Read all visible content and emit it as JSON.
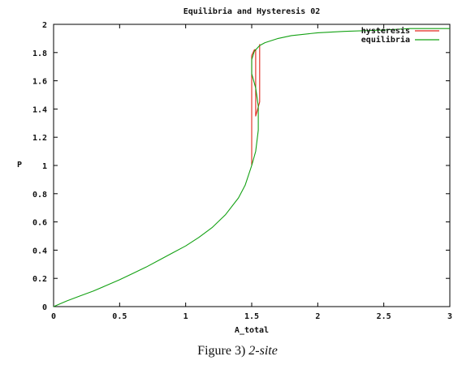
{
  "chart_data": {
    "type": "line",
    "title": "Equilibria and Hysteresis 02",
    "xlabel": "A_total",
    "ylabel": "P",
    "xlim": [
      0,
      3
    ],
    "ylim": [
      0,
      2
    ],
    "x_ticks": [
      "0",
      "0.5",
      "1",
      "1.5",
      "2",
      "2.5",
      "3"
    ],
    "y_ticks": [
      "0",
      "0.2",
      "0.4",
      "0.6",
      "0.8",
      "1",
      "1.2",
      "1.4",
      "1.6",
      "1.8",
      "2"
    ],
    "grid": false,
    "legend_position": "top-right",
    "series": [
      {
        "name": "hysteresis",
        "color": "#e0261a",
        "points": [
          [
            1.5,
            1.0
          ],
          [
            1.5,
            1.78
          ],
          [
            1.52,
            1.82
          ],
          [
            1.53,
            1.82
          ],
          [
            1.53,
            1.35
          ],
          [
            1.56,
            1.45
          ],
          [
            1.56,
            1.86
          ]
        ]
      },
      {
        "name": "equilibria",
        "color": "#13a113",
        "points": [
          [
            0.0,
            0.0
          ],
          [
            0.1,
            0.04
          ],
          [
            0.2,
            0.075
          ],
          [
            0.3,
            0.11
          ],
          [
            0.4,
            0.15
          ],
          [
            0.5,
            0.19
          ],
          [
            0.6,
            0.235
          ],
          [
            0.7,
            0.28
          ],
          [
            0.8,
            0.33
          ],
          [
            0.9,
            0.38
          ],
          [
            1.0,
            0.43
          ],
          [
            1.1,
            0.49
          ],
          [
            1.2,
            0.56
          ],
          [
            1.3,
            0.65
          ],
          [
            1.4,
            0.77
          ],
          [
            1.45,
            0.86
          ],
          [
            1.5,
            1.0
          ],
          [
            1.53,
            1.1
          ],
          [
            1.55,
            1.25
          ],
          [
            1.55,
            1.42
          ],
          [
            1.53,
            1.55
          ],
          [
            1.5,
            1.65
          ],
          [
            1.5,
            1.75
          ],
          [
            1.52,
            1.81
          ],
          [
            1.56,
            1.85
          ],
          [
            1.6,
            1.87
          ],
          [
            1.7,
            1.9
          ],
          [
            1.8,
            1.92
          ],
          [
            2.0,
            1.94
          ],
          [
            2.2,
            1.95
          ],
          [
            2.5,
            1.96
          ],
          [
            2.7,
            1.97
          ],
          [
            3.0,
            1.97
          ]
        ]
      }
    ]
  },
  "caption": {
    "label": "Figure 3)",
    "text": "2-site"
  }
}
